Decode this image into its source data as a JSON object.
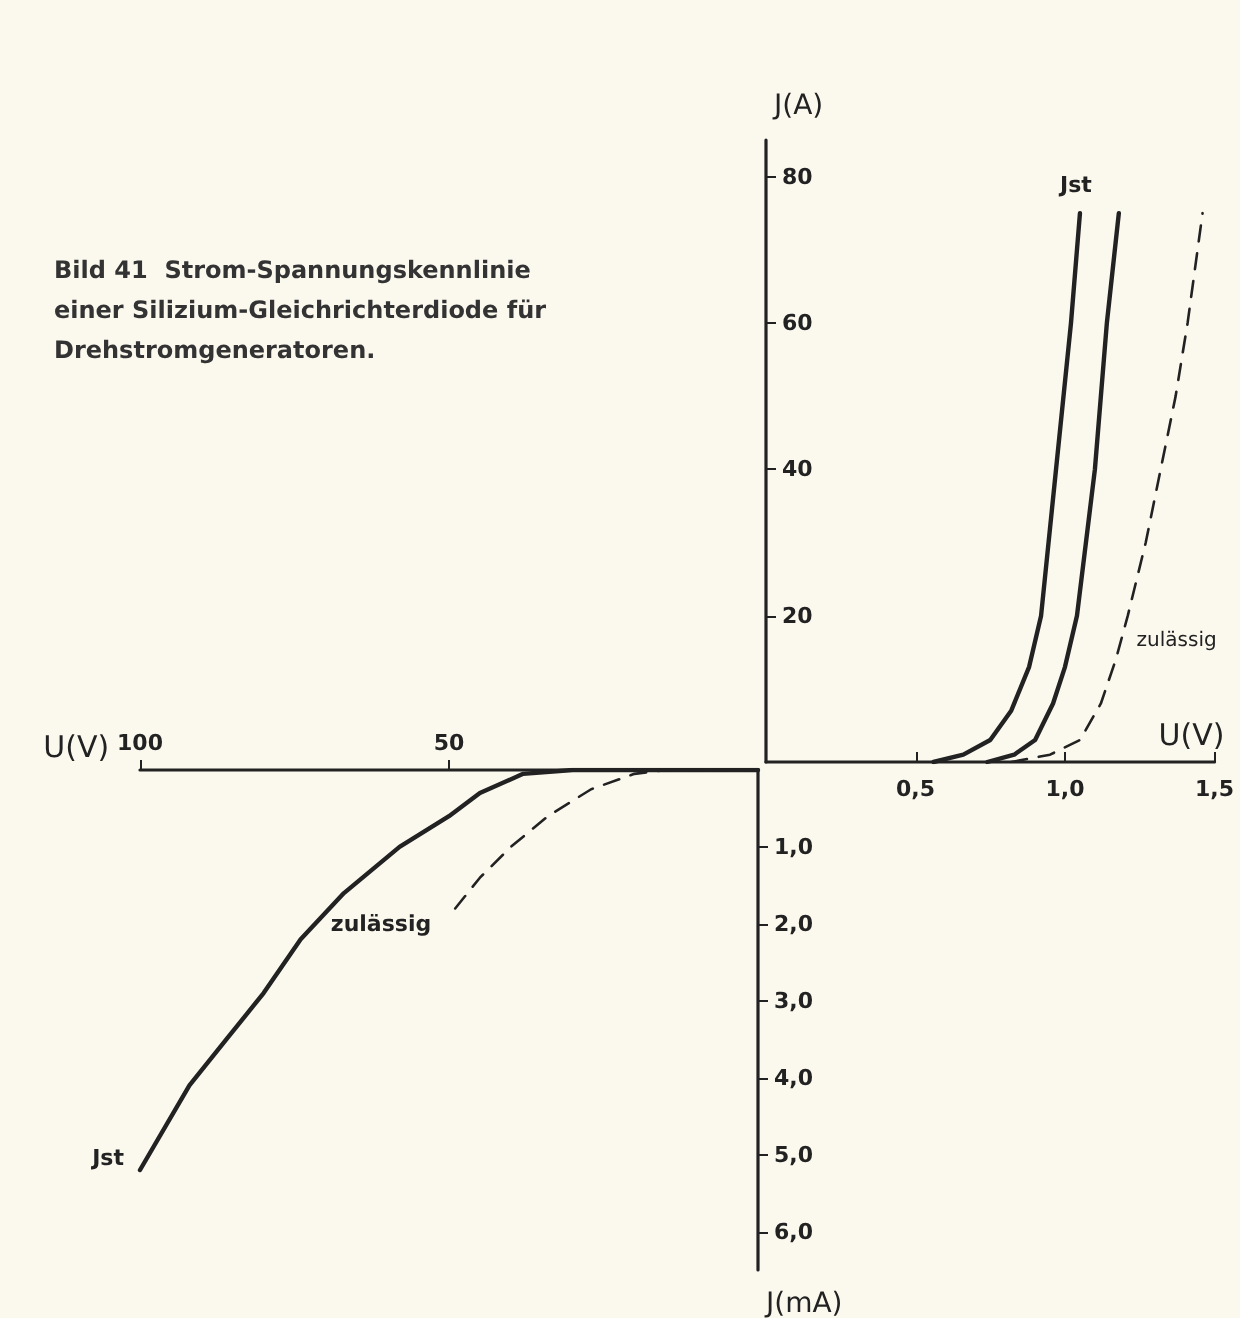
{
  "chart_data": [
    {
      "type": "line",
      "xlabel": "U(V)",
      "ylabel": "J(A)",
      "xlim": [
        0,
        1.5
      ],
      "ylim": [
        0,
        85
      ],
      "xticks": [
        {
          "value": 0.5,
          "label": "0,5"
        },
        {
          "value": 1.0,
          "label": "1,0"
        },
        {
          "value": 1.5,
          "label": "1,5"
        }
      ],
      "yticks": [
        20,
        40,
        60,
        80
      ],
      "grid": false,
      "series": [
        {
          "name": "Jst",
          "color": "#222222",
          "line_style": "solid",
          "x": [
            0.56,
            0.66,
            0.75,
            0.82,
            0.88,
            0.92,
            0.97,
            1.02,
            1.05
          ],
          "values": [
            0,
            1,
            3,
            7,
            13,
            20,
            40,
            60,
            75
          ]
        },
        {
          "color": "#222222",
          "line_style": "solid",
          "x": [
            0.74,
            0.83,
            0.9,
            0.96,
            1.0,
            1.04,
            1.1,
            1.14,
            1.18
          ],
          "values": [
            0,
            1,
            3,
            8,
            13,
            20,
            40,
            60,
            75
          ]
        },
        {
          "name": "zulässig",
          "color": "#222222",
          "line_style": "dashed",
          "x": [
            0.82,
            0.95,
            1.05,
            1.12,
            1.17,
            1.21,
            1.27,
            1.32,
            1.37,
            1.41,
            1.46
          ],
          "values": [
            0,
            1,
            3,
            8,
            14,
            20,
            30,
            40,
            50,
            60,
            75
          ]
        }
      ]
    },
    {
      "type": "line",
      "title": "Bild 41  Strom-Spannungskennlinie einer Silizium-Gleichrichterdiode für Drehstromgeneratoren.",
      "xlabel": "U(V)",
      "ylabel": "J(mA)",
      "xlim": [
        100,
        0
      ],
      "ylim": [
        6.5,
        0
      ],
      "xticks": [
        100,
        50
      ],
      "yticks": [
        {
          "value": 1,
          "label": "1,0"
        },
        {
          "value": 2,
          "label": "2,0"
        },
        {
          "value": 3,
          "label": "3,0"
        },
        {
          "value": 4,
          "label": "4,0"
        },
        {
          "value": 5,
          "label": "5,0"
        },
        {
          "value": 6,
          "label": "6,0"
        }
      ],
      "grid": false,
      "series": [
        {
          "name": "Jst",
          "color": "#222222",
          "line_style": "solid",
          "x": [
            0,
            30,
            38,
            45,
            50,
            58,
            67,
            74,
            80,
            86,
            92,
            100
          ],
          "values": [
            0,
            0,
            0.05,
            0.3,
            0.6,
            1.0,
            1.6,
            2.2,
            2.9,
            3.5,
            4.1,
            5.2
          ]
        },
        {
          "name": "zulässig",
          "color": "#222222",
          "line_style": "dashed",
          "x": [
            0,
            15,
            20,
            27,
            34,
            40,
            45,
            49
          ],
          "values": [
            0,
            0,
            0.05,
            0.25,
            0.6,
            1.0,
            1.4,
            1.8
          ]
        }
      ]
    }
  ]
}
